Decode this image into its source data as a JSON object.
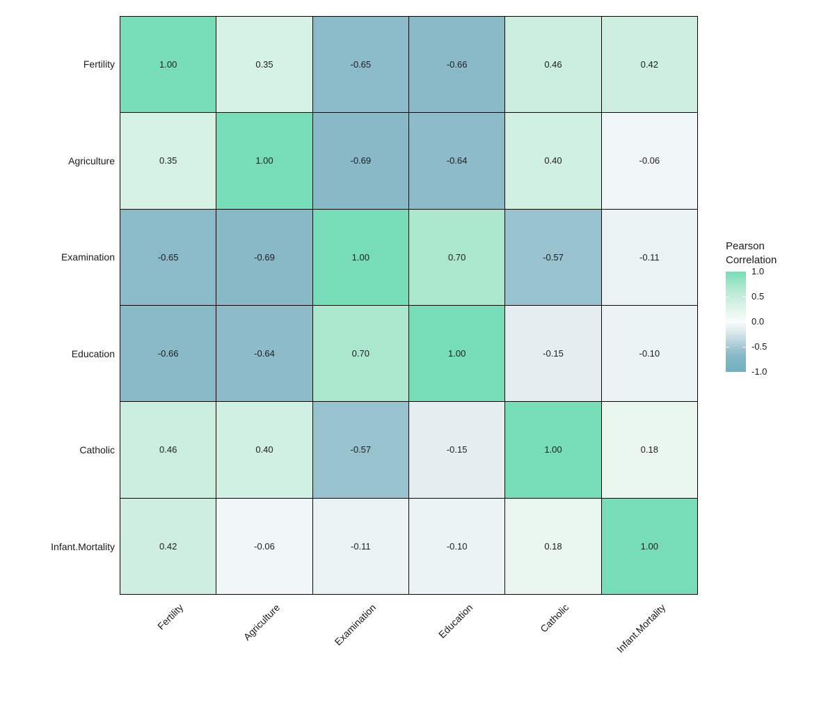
{
  "chart_data": {
    "type": "heatmap",
    "title": "",
    "variables": [
      "Fertility",
      "Agriculture",
      "Examination",
      "Education",
      "Catholic",
      "Infant.Mortality"
    ],
    "matrix": [
      [
        1.0,
        0.35,
        -0.65,
        -0.66,
        0.46,
        0.42
      ],
      [
        0.35,
        1.0,
        -0.69,
        -0.64,
        0.4,
        -0.06
      ],
      [
        -0.65,
        -0.69,
        1.0,
        0.7,
        -0.57,
        -0.11
      ],
      [
        -0.66,
        -0.64,
        0.7,
        1.0,
        -0.15,
        -0.1
      ],
      [
        0.46,
        0.4,
        -0.57,
        -0.15,
        1.0,
        0.18
      ],
      [
        0.42,
        -0.06,
        -0.11,
        -0.1,
        0.18,
        1.0
      ]
    ],
    "value_format_decimals": 2,
    "value_range": [
      -1,
      1
    ],
    "grid_color": "#000000",
    "text_color": "#1c1c1c",
    "color_scale": {
      "stops": [
        {
          "v": -1.0,
          "color": "#6fafc0"
        },
        {
          "v": -0.65,
          "color": "#8bbac8"
        },
        {
          "v": -0.15,
          "color": "#e4eef1"
        },
        {
          "v": 0.0,
          "color": "#f9fcfc"
        },
        {
          "v": 0.18,
          "color": "#e9f7ef"
        },
        {
          "v": 0.46,
          "color": "#c9eedd"
        },
        {
          "v": 0.7,
          "color": "#abe7cd"
        },
        {
          "v": 1.0,
          "color": "#76ddb8"
        }
      ]
    },
    "legend": {
      "title_line1": "Pearson",
      "title_line2": "Correlation",
      "ticks": [
        {
          "label": "1.0",
          "value": 1.0
        },
        {
          "label": "0.5",
          "value": 0.5
        },
        {
          "label": "0.0",
          "value": 0.0
        },
        {
          "label": "-0.5",
          "value": -0.5
        },
        {
          "label": "-1.0",
          "value": -1.0
        }
      ],
      "notch_values": [
        0.5,
        0.0,
        -0.5
      ]
    }
  }
}
